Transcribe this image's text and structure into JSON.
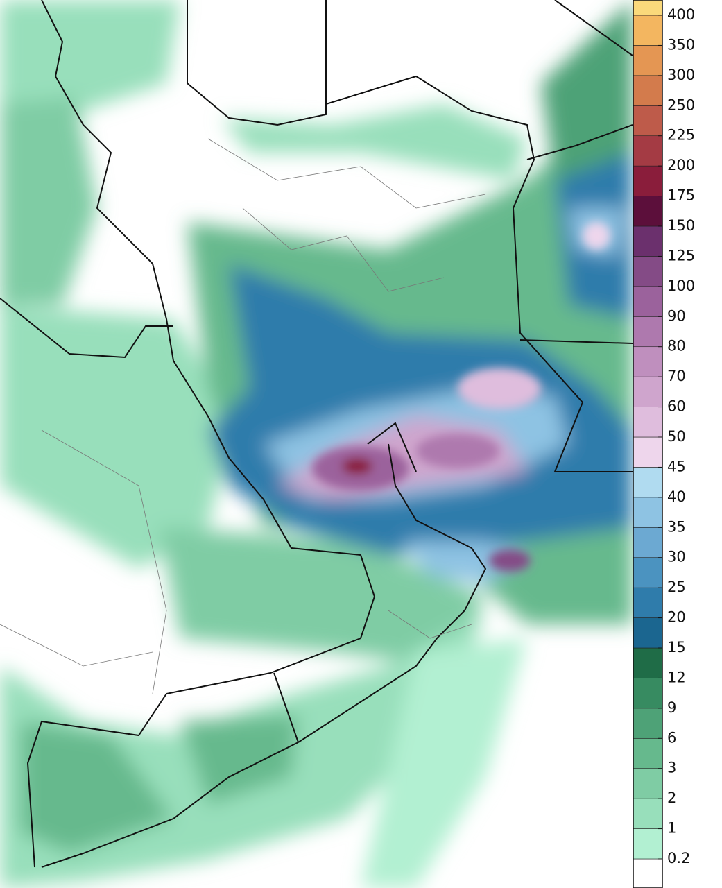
{
  "legend": {
    "labels": [
      0.2,
      1,
      2,
      3,
      6,
      9,
      12,
      15,
      20,
      25,
      30,
      35,
      40,
      45,
      50,
      60,
      70,
      80,
      90,
      100,
      125,
      150,
      175,
      200,
      225,
      250,
      300,
      350,
      400
    ],
    "colors": [
      "#ffffff",
      "#b2f0d2",
      "#98dfbb",
      "#7fcca4",
      "#66b98d",
      "#4ea277",
      "#378b61",
      "#1f6c47",
      "#1b6690",
      "#2f7cab",
      "#4b93c0",
      "#6ca9d2",
      "#8ec3e3",
      "#b0dbf0",
      "#eed6ec",
      "#dfbddd",
      "#cfa5cd",
      "#bf8fbe",
      "#ae79ae",
      "#9b629c",
      "#844b86",
      "#6b306d",
      "#5c0f3b",
      "#8a1d3b",
      "#a43b44",
      "#be5b4a",
      "#d37b4c",
      "#e49653",
      "#f3b660",
      "#fad97b"
    ]
  }
}
